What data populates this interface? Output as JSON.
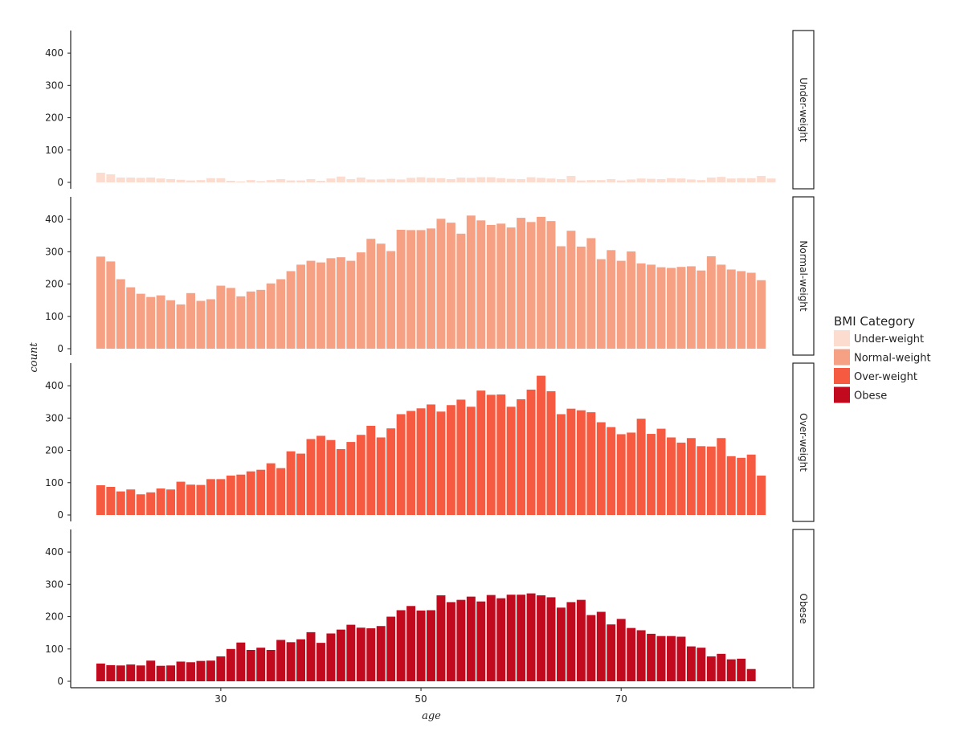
{
  "chart_data": {
    "type": "bar",
    "xlabel": "age",
    "ylabel": "count",
    "xlim": [
      15,
      87
    ],
    "ylim": [
      0,
      450
    ],
    "x_ticks": [
      30,
      50,
      70
    ],
    "y_ticks": [
      0,
      100,
      200,
      300,
      400
    ],
    "age_start": 18,
    "legend": {
      "title": "BMI Category",
      "position": "right"
    },
    "panels": [
      {
        "name": "Under-weight",
        "color": "#FDDCD0",
        "values": [
          30,
          25,
          15,
          15,
          14,
          15,
          12,
          10,
          8,
          6,
          7,
          13,
          13,
          5,
          3,
          7,
          4,
          7,
          10,
          6,
          6,
          10,
          5,
          12,
          18,
          10,
          15,
          9,
          9,
          11,
          9,
          14,
          16,
          14,
          13,
          10,
          15,
          14,
          16,
          16,
          13,
          11,
          10,
          16,
          14,
          12,
          10,
          20,
          6,
          7,
          7,
          10,
          6,
          9,
          12,
          11,
          10,
          13,
          12,
          9,
          7,
          15,
          17,
          12,
          13,
          13,
          20,
          12
        ]
      },
      {
        "name": "Normal-weight",
        "color": "#F7A184",
        "values": [
          285,
          270,
          215,
          190,
          170,
          160,
          165,
          150,
          137,
          172,
          148,
          153,
          195,
          188,
          162,
          177,
          182,
          202,
          215,
          240,
          260,
          272,
          267,
          280,
          283,
          272,
          298,
          340,
          325,
          302,
          368,
          367,
          367,
          372,
          402,
          390,
          356,
          412,
          397,
          383,
          387,
          375,
          405,
          392,
          408,
          395,
          317,
          365,
          316,
          342,
          277,
          305,
          272,
          301,
          264,
          260,
          252,
          250,
          253,
          255,
          242,
          286,
          260,
          245,
          240,
          235,
          212
        ]
      },
      {
        "name": "Over-weight",
        "color": "#F65B42",
        "values": [
          92,
          87,
          73,
          79,
          64,
          70,
          82,
          79,
          103,
          94,
          93,
          111,
          111,
          122,
          125,
          135,
          140,
          160,
          145,
          197,
          190,
          235,
          245,
          232,
          204,
          226,
          248,
          276,
          240,
          268,
          312,
          322,
          330,
          342,
          320,
          340,
          357,
          335,
          385,
          372,
          373,
          335,
          358,
          388,
          431,
          383,
          312,
          329,
          324,
          318,
          287,
          272,
          250,
          255,
          298,
          251,
          267,
          240,
          224,
          238,
          213,
          212,
          238,
          182,
          177,
          187,
          122
        ]
      },
      {
        "name": "Obese",
        "color": "#C20A1F",
        "values": [
          55,
          50,
          49,
          52,
          49,
          64,
          48,
          49,
          61,
          59,
          63,
          64,
          77,
          100,
          120,
          97,
          104,
          97,
          128,
          121,
          130,
          152,
          119,
          148,
          160,
          175,
          166,
          164,
          171,
          200,
          220,
          233,
          219,
          220,
          266,
          245,
          252,
          262,
          247,
          267,
          257,
          268,
          268,
          272,
          266,
          260,
          228,
          245,
          252,
          205,
          215,
          176,
          193,
          165,
          158,
          147,
          140,
          140,
          138,
          108,
          104,
          77,
          85,
          68,
          70,
          38
        ]
      }
    ]
  }
}
